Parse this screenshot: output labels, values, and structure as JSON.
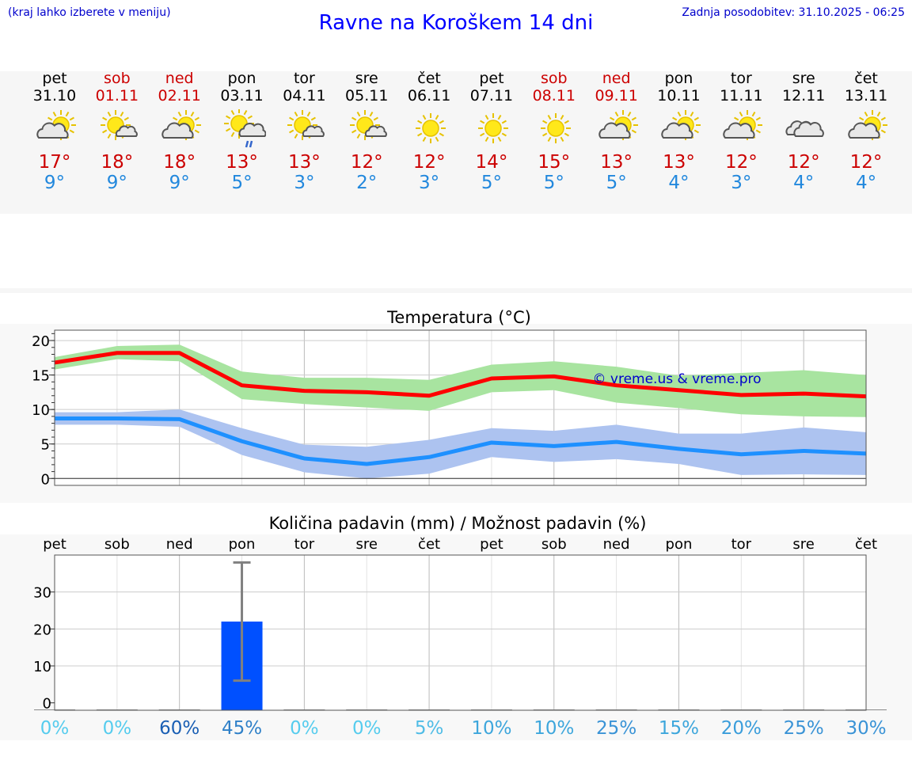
{
  "header": {
    "hint": "(kraj lahko izberete v meniju)",
    "title": "Ravne na Koroškem 14 dni",
    "updated": "Zadnja posodobitev: 31.10.2025 - 06:25"
  },
  "days": [
    {
      "name": "pet",
      "date": "31.10",
      "weekend": false,
      "icon": "sun-cloud-icon",
      "tmax": "17°",
      "tmin": "9°"
    },
    {
      "name": "sob",
      "date": "01.11",
      "weekend": true,
      "icon": "sun-small-cloud-icon",
      "tmax": "18°",
      "tmin": "9°"
    },
    {
      "name": "ned",
      "date": "02.11",
      "weekend": true,
      "icon": "sun-cloud-icon",
      "tmax": "18°",
      "tmin": "9°"
    },
    {
      "name": "pon",
      "date": "03.11",
      "weekend": false,
      "icon": "sun-cloud-rain-icon",
      "tmax": "13°",
      "tmin": "5°"
    },
    {
      "name": "tor",
      "date": "04.11",
      "weekend": false,
      "icon": "sun-small-cloud-icon",
      "tmax": "13°",
      "tmin": "3°"
    },
    {
      "name": "sre",
      "date": "05.11",
      "weekend": false,
      "icon": "sun-small-cloud-icon",
      "tmax": "12°",
      "tmin": "2°"
    },
    {
      "name": "čet",
      "date": "06.11",
      "weekend": false,
      "icon": "sun-icon",
      "tmax": "12°",
      "tmin": "3°"
    },
    {
      "name": "pet",
      "date": "07.11",
      "weekend": false,
      "icon": "sun-icon",
      "tmax": "14°",
      "tmin": "5°"
    },
    {
      "name": "sob",
      "date": "08.11",
      "weekend": true,
      "icon": "sun-icon",
      "tmax": "15°",
      "tmin": "5°"
    },
    {
      "name": "ned",
      "date": "09.11",
      "weekend": true,
      "icon": "sun-cloud-icon",
      "tmax": "13°",
      "tmin": "5°"
    },
    {
      "name": "pon",
      "date": "10.11",
      "weekend": false,
      "icon": "sun-cloud-icon",
      "tmax": "13°",
      "tmin": "4°"
    },
    {
      "name": "tor",
      "date": "11.11",
      "weekend": false,
      "icon": "sun-cloud-icon",
      "tmax": "12°",
      "tmin": "3°"
    },
    {
      "name": "sre",
      "date": "12.11",
      "weekend": false,
      "icon": "cloudy-icon",
      "tmax": "12°",
      "tmin": "4°"
    },
    {
      "name": "čet",
      "date": "13.11",
      "weekend": false,
      "icon": "sun-cloud-icon",
      "tmax": "12°",
      "tmin": "4°"
    }
  ],
  "colors": {
    "max_line": "#ff0000",
    "max_band": "#a8e4a0",
    "min_line": "#1e90ff",
    "min_band": "#adc3f0",
    "bar": "#0050ff",
    "errbar": "#808080",
    "watermark": "#0000cc"
  },
  "chart_data": [
    {
      "type": "line",
      "title": "Temperatura (°C)",
      "watermark": "© vreme.us & vreme.pro",
      "ylim": [
        -1,
        21.5
      ],
      "yticks": [
        0,
        5,
        10,
        15,
        20
      ],
      "x": [
        0,
        1,
        2,
        3,
        4,
        5,
        6,
        7,
        8,
        9,
        10,
        11,
        12,
        13
      ],
      "series": [
        {
          "name": "max",
          "values": [
            16.8,
            18.2,
            18.2,
            13.5,
            12.7,
            12.5,
            12.0,
            14.5,
            14.8,
            13.5,
            12.8,
            12.1,
            12.3,
            11.9
          ],
          "band_low": [
            15.8,
            17.3,
            17.0,
            11.5,
            10.8,
            10.3,
            9.8,
            12.5,
            12.8,
            11.0,
            10.2,
            9.3,
            9.0,
            8.9
          ],
          "band_high": [
            17.6,
            19.2,
            19.4,
            15.5,
            14.6,
            14.6,
            14.3,
            16.5,
            17.0,
            16.2,
            14.9,
            15.3,
            15.7,
            15.0
          ]
        },
        {
          "name": "min",
          "values": [
            8.7,
            8.7,
            8.6,
            5.4,
            2.9,
            2.1,
            3.1,
            5.2,
            4.7,
            5.3,
            4.3,
            3.5,
            4.0,
            3.6
          ],
          "band_low": [
            7.8,
            7.8,
            7.5,
            3.4,
            0.9,
            0.0,
            0.7,
            3.1,
            2.4,
            2.8,
            2.1,
            0.5,
            0.6,
            0.5
          ],
          "band_high": [
            9.6,
            9.6,
            10.0,
            7.3,
            4.9,
            4.6,
            5.6,
            7.3,
            6.9,
            7.8,
            6.5,
            6.5,
            7.4,
            6.7
          ]
        }
      ]
    },
    {
      "type": "bar",
      "title": "Količina padavin (mm) / Možnost padavin (%)",
      "categories": [
        "pet",
        "sob",
        "ned",
        "pon",
        "tor",
        "sre",
        "čet",
        "pet",
        "sob",
        "ned",
        "pon",
        "tor",
        "sre",
        "čet"
      ],
      "values": [
        0,
        0,
        0,
        22,
        0,
        0,
        0,
        0,
        0,
        0,
        0,
        0,
        0,
        0
      ],
      "error_low": [
        0,
        0,
        0,
        6,
        0,
        0,
        0,
        0,
        0,
        0,
        0,
        0,
        0,
        0
      ],
      "error_high": [
        0,
        0,
        0,
        38,
        0,
        0,
        0,
        0,
        0,
        0,
        0,
        0,
        0,
        0
      ],
      "ylim": [
        -2,
        40
      ],
      "yticks": [
        0,
        10,
        20,
        30
      ],
      "probability": [
        "0%",
        "0%",
        "60%",
        "45%",
        "0%",
        "0%",
        "5%",
        "10%",
        "10%",
        "25%",
        "15%",
        "20%",
        "25%",
        "30%"
      ],
      "probability_colors": [
        "#55ccee",
        "#55ccee",
        "#1a5fb4",
        "#2f80c8",
        "#55ccee",
        "#55ccee",
        "#4fbce6",
        "#3da6dc",
        "#3da6dc",
        "#3a93d6",
        "#3da6dc",
        "#3a9ddb",
        "#3a93d6",
        "#3a93d6"
      ]
    }
  ]
}
